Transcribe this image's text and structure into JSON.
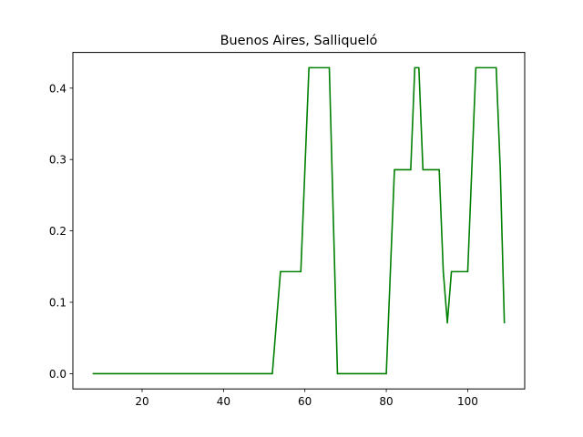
{
  "chart_data": {
    "type": "line",
    "title": "Buenos Aires, Salliqueló",
    "xlabel": "",
    "ylabel": "",
    "xlim": [
      3,
      114
    ],
    "ylim": [
      -0.0214,
      0.45
    ],
    "x_ticks": [
      20,
      40,
      60,
      80,
      100
    ],
    "y_ticks": [
      0.0,
      0.1,
      0.2,
      0.3,
      0.4
    ],
    "x_tick_labels": [
      "20",
      "40",
      "60",
      "80",
      "100"
    ],
    "y_tick_labels": [
      "0.0",
      "0.1",
      "0.2",
      "0.3",
      "0.4"
    ],
    "grid": false,
    "legend": "none",
    "series": [
      {
        "color": "#008000",
        "x": [
          8,
          52,
          54,
          59,
          61,
          66,
          68,
          80,
          82,
          86,
          87,
          88,
          89,
          93,
          94,
          95,
          96,
          100,
          102,
          107,
          108,
          109
        ],
        "y": [
          0.0,
          0.0,
          0.1429,
          0.1429,
          0.4286,
          0.4286,
          0.0,
          0.0,
          0.2857,
          0.2857,
          0.4286,
          0.4286,
          0.2857,
          0.2857,
          0.1429,
          0.0714,
          0.1429,
          0.1429,
          0.4286,
          0.4286,
          0.2857,
          0.0714
        ]
      }
    ]
  }
}
